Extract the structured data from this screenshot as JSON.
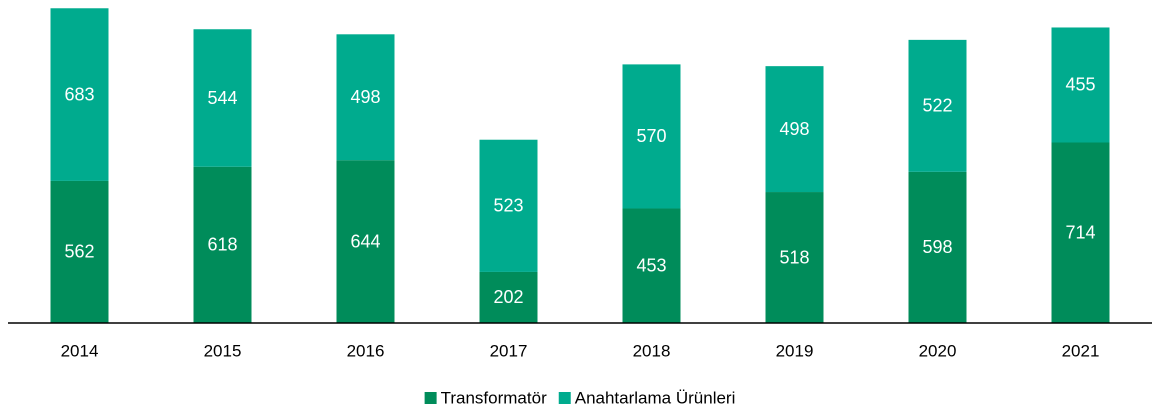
{
  "chart_data": {
    "type": "stacked_bar",
    "categories": [
      "2014",
      "2015",
      "2016",
      "2017",
      "2018",
      "2019",
      "2020",
      "2021"
    ],
    "series": [
      {
        "name": "Transformatör",
        "color": "#008c5a",
        "values": [
          562,
          618,
          644,
          202,
          453,
          518,
          598,
          714
        ]
      },
      {
        "name": "Anahtarlama Ürünleri",
        "color": "#00ab8e",
        "values": [
          683,
          544,
          498,
          523,
          570,
          498,
          522,
          455
        ]
      }
    ],
    "ylim": [
      0,
      1250
    ],
    "legend": "bottom"
  }
}
